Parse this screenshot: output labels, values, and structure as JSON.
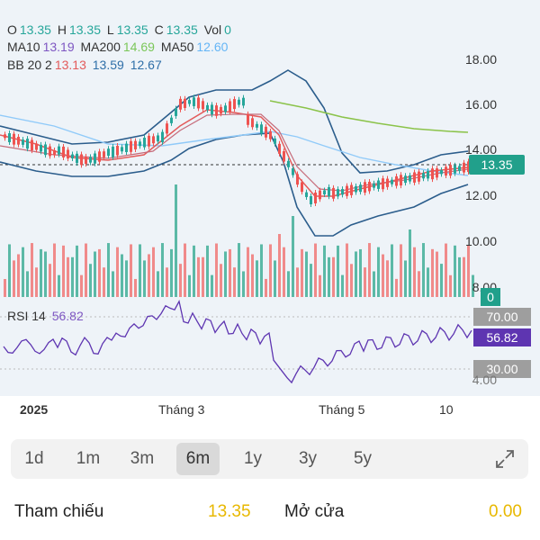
{
  "legend": {
    "ohlc": {
      "o_label": "O",
      "o": "13.35",
      "h_label": "H",
      "h": "13.35",
      "l_label": "L",
      "l": "13.35",
      "c_label": "C",
      "c": "13.35",
      "vol_label": "Vol",
      "vol": "0"
    },
    "ma": {
      "ma10_label": "MA10",
      "ma10": "13.19",
      "ma200_label": "MA200",
      "ma200": "14.69",
      "ma50_label": "MA50",
      "ma50": "12.60"
    },
    "bb": {
      "label": "BB 20 2",
      "upper": "13.13",
      "mid": "13.59",
      "lower": "12.67"
    }
  },
  "yaxis": [
    "18.00",
    "16.00",
    "14.00",
    "12.00",
    "10.00",
    "8.00"
  ],
  "price_tag": "13.35",
  "vol_tag": "0",
  "rsi": {
    "label": "RSI 14",
    "value": "56.82",
    "upper": "70.00",
    "lower": "30.00",
    "axis_peek": "4.00"
  },
  "xaxis": {
    "year": "2025",
    "m3": "Tháng 3",
    "m5": "Tháng 5",
    "d10": "10"
  },
  "timeframes": [
    "1d",
    "1m",
    "3m",
    "6m",
    "1y",
    "3y",
    "5y"
  ],
  "active_timeframe": "6m",
  "info": {
    "ref_label": "Tham chiếu",
    "ref_value": "13.35",
    "open_label": "Mở cửa",
    "open_value": "0.00"
  },
  "colors": {
    "up": "#26a69a",
    "down": "#ef5350",
    "rsi": "#5e35b1",
    "bb": "#2b5d8c",
    "ma10": "#e35a5a",
    "ma50": "#90caf9",
    "ma200": "#8bc34a",
    "accent_tag": "#21a08b"
  },
  "icons": {
    "expand": "expand-arrows-icon"
  }
}
